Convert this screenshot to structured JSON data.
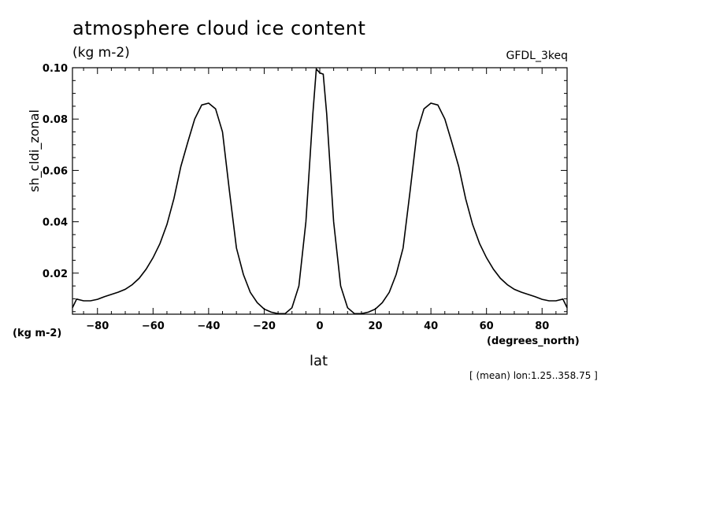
{
  "header": {
    "title": "atmosphere cloud ice content",
    "units": "(kg m-2)",
    "model": "GFDL_3keq"
  },
  "footer": {
    "y_units_label": "(kg m-2)",
    "x_units_label": "(degrees_north)",
    "mean_note": "[ (mean) lon:1.25..358.75 ]"
  },
  "chart_data": {
    "type": "line",
    "title": "atmosphere cloud ice content",
    "xlabel": "lat",
    "ylabel": "sh_cldi_zonal",
    "xlim": [
      -89,
      89
    ],
    "ylim": [
      0.004,
      0.1
    ],
    "x_ticks": [
      -80,
      -60,
      -40,
      -20,
      0,
      20,
      40,
      60,
      80
    ],
    "y_ticks": [
      0.02,
      0.04,
      0.06,
      0.08,
      0.1
    ],
    "y_tick_labels": [
      "0.02",
      "0.04",
      "0.06",
      "0.08",
      "0.10"
    ],
    "grid": false,
    "series": [
      {
        "x": [
          -89,
          -87.5,
          -85,
          -82.5,
          -80,
          -77.5,
          -75,
          -72.5,
          -70,
          -67.5,
          -65,
          -62.5,
          -60,
          -57.5,
          -55,
          -52.5,
          -50,
          -47.5,
          -45,
          -42.5,
          -40,
          -37.5,
          -35,
          -32.5,
          -30,
          -27.5,
          -25,
          -22.5,
          -20,
          -17.5,
          -15,
          -12.5,
          -10,
          -7.5,
          -5,
          -2.5,
          -1.25,
          0,
          1.25,
          2.5,
          5,
          7.5,
          10,
          12.5,
          15,
          17.5,
          20,
          22.5,
          25,
          27.5,
          30,
          32.5,
          35,
          37.5,
          40,
          42.5,
          45,
          47.5,
          50,
          52.5,
          55,
          57.5,
          60,
          62.5,
          65,
          67.5,
          70,
          72.5,
          75,
          77.5,
          80,
          82.5,
          85,
          87.5,
          89
        ],
        "y": [
          0.0065,
          0.0099,
          0.0092,
          0.0092,
          0.0098,
          0.0108,
          0.0117,
          0.0126,
          0.0137,
          0.0155,
          0.018,
          0.0215,
          0.026,
          0.0315,
          0.039,
          0.049,
          0.0615,
          0.071,
          0.08,
          0.0855,
          0.0862,
          0.084,
          0.075,
          0.052,
          0.0298,
          0.0195,
          0.0125,
          0.0085,
          0.006,
          0.0048,
          0.0042,
          0.0042,
          0.0065,
          0.015,
          0.04,
          0.082,
          0.0995,
          0.098,
          0.0975,
          0.082,
          0.04,
          0.015,
          0.0065,
          0.0042,
          0.0042,
          0.0048,
          0.006,
          0.0085,
          0.0125,
          0.0195,
          0.0298,
          0.052,
          0.075,
          0.084,
          0.0862,
          0.0855,
          0.08,
          0.071,
          0.0615,
          0.049,
          0.039,
          0.0315,
          0.026,
          0.0215,
          0.018,
          0.0155,
          0.0137,
          0.0126,
          0.0117,
          0.0108,
          0.0098,
          0.0092,
          0.0092,
          0.0099,
          0.0065
        ]
      }
    ]
  }
}
